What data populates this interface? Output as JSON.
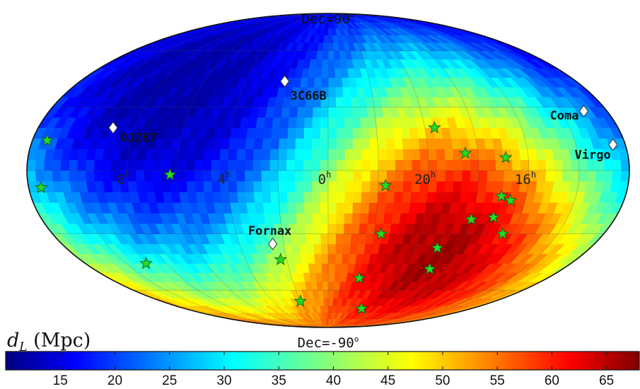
{
  "chart_data": {
    "type": "heatmap",
    "projection": "mollweide",
    "xlabel": "",
    "ylabel": "",
    "pole_labels": {
      "north": "Dec=90",
      "south": "Dec=-90",
      "degree_mark": "o"
    },
    "ra_ticks": [
      {
        "hours": 8,
        "label": "8",
        "sup": "h"
      },
      {
        "hours": 4,
        "label": "4",
        "sup": "h"
      },
      {
        "hours": 0,
        "label": "0",
        "sup": "h"
      },
      {
        "hours": 20,
        "label": "20",
        "sup": "h"
      },
      {
        "hours": 16,
        "label": "16",
        "sup": "h"
      }
    ],
    "colorbar": {
      "label_symbol": "d",
      "label_subscript": "L",
      "label_unit": " (Mpc)",
      "ticks": [
        15,
        20,
        25,
        30,
        35,
        40,
        45,
        50,
        55,
        60,
        65
      ],
      "range": [
        10,
        68
      ],
      "colormap": "jet"
    },
    "field": {
      "hot_center": {
        "ra_hours": 19.3,
        "dec": -30
      },
      "cold_center": {
        "ra_hours": 6.5,
        "dec": 55
      },
      "min": 12,
      "max": 67
    },
    "sources": [
      {
        "name": "3C66B",
        "ra_hours": 2.1,
        "dec": 43
      },
      {
        "name": "OJ287",
        "ra_hours": 8.9,
        "dec": 20
      },
      {
        "name": "Fornax",
        "ra_hours": 2.5,
        "dec": -35
      },
      {
        "name": "Coma",
        "ra_hours": 13.0,
        "dec": 28
      },
      {
        "name": "Virgo",
        "ra_hours": 12.5,
        "dec": 12
      }
    ],
    "stars": [
      {
        "ra_hours": 11.4,
        "dec": 14
      },
      {
        "ra_hours": 11.5,
        "dec": -8
      },
      {
        "ra_hours": 6.3,
        "dec": -2
      },
      {
        "ra_hours": 9.0,
        "dec": -45
      },
      {
        "ra_hours": 2.3,
        "dec": -43
      },
      {
        "ra_hours": 2.0,
        "dec": -67
      },
      {
        "ra_hours": 21.7,
        "dec": -7
      },
      {
        "ra_hours": 21.7,
        "dec": -30
      },
      {
        "ra_hours": 22.3,
        "dec": -53
      },
      {
        "ra_hours": 21.2,
        "dec": -72
      },
      {
        "ra_hours": 19.6,
        "dec": 20
      },
      {
        "ra_hours": 18.5,
        "dec": 8
      },
      {
        "ra_hours": 16.9,
        "dec": 6
      },
      {
        "ra_hours": 17.0,
        "dec": -12
      },
      {
        "ra_hours": 16.6,
        "dec": -14
      },
      {
        "ra_hours": 18.0,
        "dec": -23
      },
      {
        "ra_hours": 17.1,
        "dec": -22
      },
      {
        "ra_hours": 16.4,
        "dec": -30
      },
      {
        "ra_hours": 19.0,
        "dec": -37
      },
      {
        "ra_hours": 18.8,
        "dec": -48
      }
    ]
  }
}
